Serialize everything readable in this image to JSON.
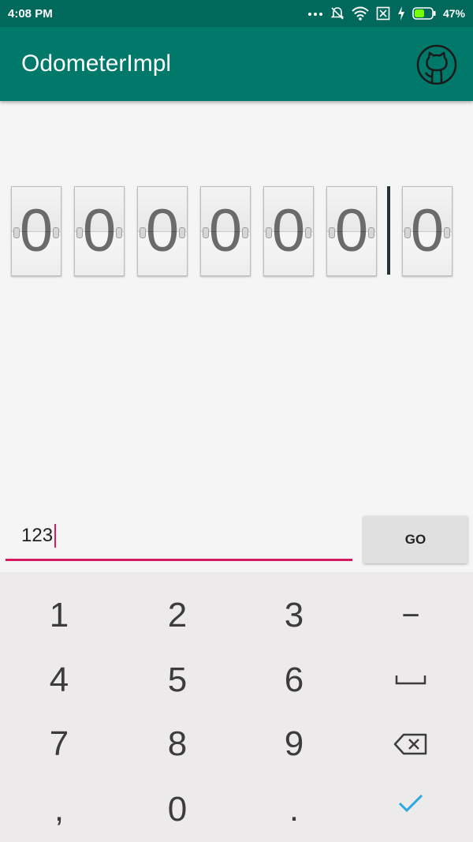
{
  "status_bar": {
    "time": "4:08 PM",
    "battery": "47%",
    "icons": [
      "more-icon",
      "mute-icon",
      "wifi-icon",
      "no-sim-icon",
      "charging-icon",
      "battery-icon"
    ]
  },
  "app_bar": {
    "title": "OdometerImpl",
    "action_icon": "github-icon"
  },
  "odometer": {
    "digits": [
      "0",
      "0",
      "0",
      "0",
      "0",
      "0",
      "0"
    ]
  },
  "input": {
    "value": "123"
  },
  "go_button": {
    "label": "GO"
  },
  "keyboard": {
    "rows": [
      [
        "1",
        "2",
        "3",
        "−"
      ],
      [
        "4",
        "5",
        "6",
        "space-icon"
      ],
      [
        "7",
        "8",
        "9",
        "backspace-icon"
      ],
      [
        ",",
        "0",
        ".",
        "check-icon"
      ]
    ],
    "labels": {
      "k1": "1",
      "k2": "2",
      "k3": "3",
      "minus": "−",
      "k4": "4",
      "k5": "5",
      "k6": "6",
      "k7": "7",
      "k8": "8",
      "k9": "9",
      "comma": ",",
      "k0": "0",
      "period": "."
    }
  },
  "colors": {
    "status_bar": "#00695c",
    "app_bar": "#00796b",
    "accent": "#d81b60",
    "confirm": "#29a9e0"
  }
}
